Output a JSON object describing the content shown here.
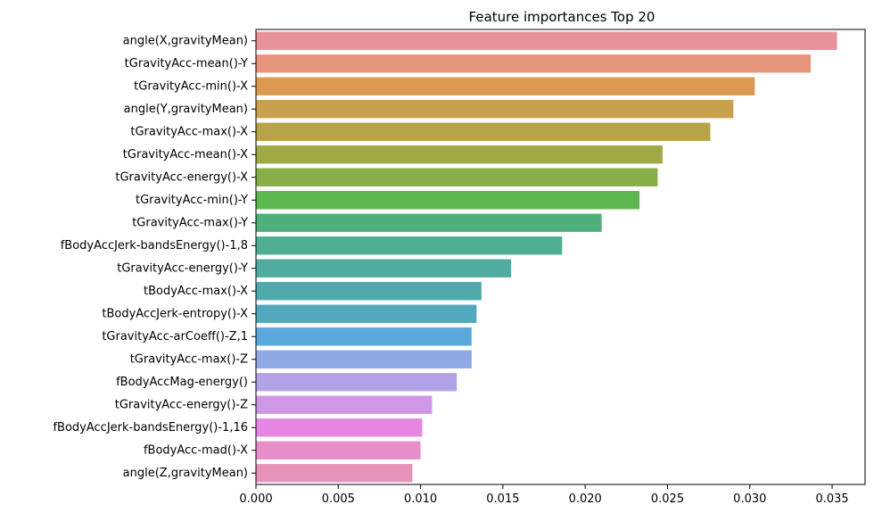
{
  "chart_data": {
    "type": "bar",
    "orientation": "horizontal",
    "title": "Feature importances Top 20",
    "xlabel": "",
    "ylabel": "",
    "xlim": [
      0,
      0.037
    ],
    "xticks": [
      "0.000",
      "0.005",
      "0.010",
      "0.015",
      "0.020",
      "0.025",
      "0.030",
      "0.035"
    ],
    "grid": false,
    "categories": [
      "angle(X,gravityMean)",
      "tGravityAcc-mean()-Y",
      "tGravityAcc-min()-X",
      "angle(Y,gravityMean)",
      "tGravityAcc-max()-X",
      "tGravityAcc-mean()-X",
      "tGravityAcc-energy()-X",
      "tGravityAcc-min()-Y",
      "tGravityAcc-max()-Y",
      "fBodyAccJerk-bandsEnergy()-1,8",
      "tGravityAcc-energy()-Y",
      "tBodyAcc-max()-X",
      "tBodyAccJerk-entropy()-X",
      "tGravityAcc-arCoeff()-Z,1",
      "tGravityAcc-max()-Z",
      "fBodyAccMag-energy()",
      "tGravityAcc-energy()-Z",
      "fBodyAccJerk-bandsEnergy()-1,16",
      "fBodyAcc-mad()-X",
      "angle(Z,gravityMean)"
    ],
    "values": [
      0.0353,
      0.0337,
      0.0303,
      0.029,
      0.0276,
      0.0247,
      0.0244,
      0.0233,
      0.021,
      0.0186,
      0.0155,
      0.0137,
      0.0134,
      0.0131,
      0.0131,
      0.0122,
      0.0107,
      0.0101,
      0.01,
      0.0095
    ],
    "colors": [
      "#e8929b",
      "#e8957d",
      "#db9a52",
      "#c9a04d",
      "#b8a348",
      "#a1a947",
      "#87ae47",
      "#5db74f",
      "#4fb07a",
      "#4faf91",
      "#4fac9f",
      "#50aaab",
      "#52a8bc",
      "#5aa9dc",
      "#8fa8e6",
      "#b2a3e9",
      "#cf98e7",
      "#e688e3",
      "#e78dca",
      "#e793b9"
    ]
  }
}
